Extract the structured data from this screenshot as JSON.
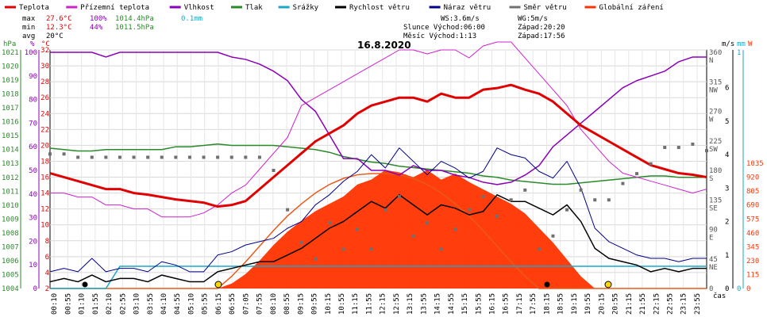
{
  "chart_data": {
    "type": "line",
    "title": "16.8.2020",
    "xlabel": "čas",
    "legend": [
      {
        "name": "Teplota",
        "color": "#e00000"
      },
      {
        "name": "Přízemní teplota",
        "color": "#cc22cc"
      },
      {
        "name": "Vlhkost",
        "color": "#8a00b8"
      },
      {
        "name": "Tlak",
        "color": "#2a8a2a"
      },
      {
        "name": "Srážky",
        "color": "#1aa8c8"
      },
      {
        "name": "Rychlost větru",
        "color": "#000000"
      },
      {
        "name": "Náraz větru",
        "color": "#000088"
      },
      {
        "name": "Směr větru",
        "color": "#707070"
      },
      {
        "name": "Globální záření",
        "color": "#ff3300"
      }
    ],
    "stats": {
      "max_label": "max",
      "max_temp": "27.6°C",
      "max_hum": "100%",
      "max_press": "1014.4hPa",
      "rain": "0.1mm",
      "min_label": "min",
      "min_temp": "12.3°C",
      "min_hum": "44%",
      "min_press": "1011.5hPa",
      "avg_label": "avg",
      "avg_temp": "20°C",
      "ws": "WS:3.6m/s",
      "wg": "WG:5m/s",
      "sun": "Slunce Východ:06:00",
      "sun_set": "Západ:20:20",
      "moon": "Měsíc Východ:1:13",
      "moon_set": "Západ:17:56"
    },
    "axes": {
      "hpa_label": "hPa",
      "pct_label": "%",
      "c_label": "°C",
      "ms_label": "m/s",
      "mm_label": "mm",
      "w_label": "W",
      "hpa_ticks": [
        "1021",
        "1020",
        "1019",
        "1018",
        "1017",
        "1016",
        "1015",
        "1014",
        "1013",
        "1012",
        "1011",
        "1010",
        "1009",
        "1008",
        "1007",
        "1006",
        "1005",
        "1004"
      ],
      "pct_ticks": [
        "100",
        "90",
        "80",
        "70",
        "60",
        "50",
        "40",
        "30",
        "20",
        "10",
        "0"
      ],
      "c_ticks": [
        "32",
        "30",
        "28",
        "26",
        "24",
        "22",
        "20",
        "18",
        "16",
        "14",
        "12",
        "10",
        "8",
        "6",
        "4",
        "2"
      ],
      "deg_ticks": [
        "360",
        "315",
        "270",
        "225",
        "180",
        "135",
        "90",
        "45",
        "0"
      ],
      "dir_ticks": [
        "N",
        "NW",
        "W",
        "SW",
        "S",
        "SE",
        "E",
        "NE",
        ""
      ],
      "ms_ticks": [
        "6",
        "5",
        "4",
        "3",
        "2",
        "1",
        "0"
      ],
      "mm_ticks": [
        "1",
        "0"
      ],
      "w_ticks": [
        "1035",
        "920",
        "805",
        "690",
        "575",
        "460",
        "345",
        "230",
        "115",
        "0"
      ]
    },
    "x_ticks": [
      "00:10",
      "00:55",
      "01:10",
      "01:55",
      "02:10",
      "02:55",
      "03:10",
      "03:55",
      "04:10",
      "04:55",
      "05:10",
      "05:55",
      "06:15",
      "06:55",
      "07:05",
      "07:55",
      "08:10",
      "08:55",
      "09:15",
      "09:55",
      "10:15",
      "10:55",
      "11:15",
      "11:55",
      "12:15",
      "12:55",
      "13:15",
      "13:55",
      "14:15",
      "14:55",
      "15:15",
      "15:55",
      "16:15",
      "16:55",
      "17:15",
      "17:55",
      "18:15",
      "18:55",
      "19:15",
      "19:55",
      "20:15",
      "20:55",
      "21:15",
      "21:55",
      "22:15",
      "22:55",
      "23:15",
      "23:55"
    ],
    "x_hours": [
      0,
      2,
      4,
      6,
      8,
      10,
      12,
      14,
      16,
      18,
      20,
      22,
      24
    ],
    "temperature": [
      16.5,
      16.0,
      15.5,
      15.0,
      14.5,
      14.5,
      14.0,
      13.8,
      13.5,
      13.2,
      13.0,
      12.8,
      12.3,
      12.5,
      13.0,
      14.5,
      16.0,
      17.5,
      19.0,
      20.5,
      21.5,
      22.5,
      24.0,
      25.0,
      25.5,
      26.0,
      26.0,
      25.5,
      26.5,
      26.0,
      26.0,
      27.0,
      27.2,
      27.6,
      27.0,
      26.5,
      25.5,
      24.0,
      22.5,
      21.5,
      20.5,
      19.5,
      18.5,
      17.5,
      17.0,
      16.5,
      16.3,
      16.0
    ],
    "ground_temperature": [
      14.0,
      14.0,
      13.5,
      13.5,
      12.5,
      12.5,
      12.0,
      12.0,
      11.0,
      11.0,
      11.0,
      11.5,
      12.5,
      14.0,
      15.0,
      17.0,
      19.0,
      21.0,
      25.0,
      26.0,
      27.0,
      28.0,
      29.0,
      30.0,
      31.0,
      32.0,
      32.0,
      31.5,
      32.0,
      32.0,
      31.0,
      32.5,
      33.0,
      33.0,
      31.0,
      29.0,
      27.0,
      25.0,
      22.0,
      20.0,
      18.0,
      16.5,
      16.0,
      15.5,
      15.0,
      14.5,
      14.0,
      14.5
    ],
    "humidity": [
      100,
      100,
      100,
      100,
      98,
      100,
      100,
      100,
      100,
      100,
      100,
      100,
      100,
      98,
      97,
      95,
      92,
      88,
      80,
      75,
      65,
      55,
      55,
      50,
      50,
      48,
      52,
      50,
      50,
      48,
      47,
      45,
      44,
      45,
      48,
      52,
      60,
      65,
      70,
      75,
      80,
      85,
      88,
      90,
      92,
      96,
      98,
      98
    ],
    "pressure": [
      1014.1,
      1014.0,
      1013.9,
      1013.9,
      1014.0,
      1014.0,
      1014.0,
      1014.0,
      1014.0,
      1014.2,
      1014.2,
      1014.3,
      1014.4,
      1014.3,
      1014.3,
      1014.3,
      1014.3,
      1014.2,
      1014.1,
      1014.0,
      1013.8,
      1013.5,
      1013.3,
      1013.1,
      1013.0,
      1012.8,
      1012.7,
      1012.6,
      1012.5,
      1012.4,
      1012.3,
      1012.1,
      1012.0,
      1011.8,
      1011.7,
      1011.6,
      1011.5,
      1011.5,
      1011.6,
      1011.7,
      1011.8,
      1011.9,
      1012.0,
      1012.1,
      1012.1,
      1012.0,
      1012.0,
      1012.0
    ],
    "wind_speed": [
      0.2,
      0.3,
      0.2,
      0.4,
      0.2,
      0.3,
      0.3,
      0.2,
      0.4,
      0.3,
      0.2,
      0.2,
      0.5,
      0.6,
      0.7,
      0.8,
      0.8,
      1.0,
      1.2,
      1.5,
      1.8,
      2.0,
      2.3,
      2.6,
      2.4,
      2.8,
      2.5,
      2.2,
      2.5,
      2.4,
      2.2,
      2.3,
      2.8,
      2.6,
      2.6,
      2.4,
      2.2,
      2.5,
      2.0,
      1.2,
      0.9,
      0.8,
      0.7,
      0.5,
      0.6,
      0.5,
      0.6,
      0.6
    ],
    "wind_gust": [
      0.5,
      0.6,
      0.5,
      0.9,
      0.5,
      0.6,
      0.6,
      0.5,
      0.8,
      0.7,
      0.5,
      0.5,
      1.0,
      1.1,
      1.3,
      1.4,
      1.5,
      1.8,
      2.0,
      2.5,
      2.8,
      3.2,
      3.5,
      4.0,
      3.6,
      4.2,
      3.8,
      3.4,
      3.8,
      3.6,
      3.3,
      3.5,
      4.2,
      4.0,
      3.9,
      3.5,
      3.3,
      3.8,
      3.0,
      1.8,
      1.4,
      1.2,
      1.0,
      0.9,
      0.9,
      0.8,
      0.9,
      0.9
    ],
    "wind_direction": [
      205,
      205,
      200,
      200,
      200,
      200,
      200,
      200,
      200,
      200,
      200,
      200,
      200,
      200,
      200,
      200,
      180,
      120,
      70,
      45,
      100,
      60,
      90,
      60,
      120,
      140,
      80,
      100,
      60,
      90,
      120,
      140,
      110,
      135,
      150,
      60,
      80,
      120,
      150,
      135,
      135,
      160,
      175,
      190,
      215,
      215,
      220,
      210
    ],
    "radiation": [
      0,
      0,
      0,
      0,
      0,
      0,
      0,
      0,
      0,
      0,
      0,
      0,
      0,
      40,
      120,
      230,
      360,
      470,
      560,
      640,
      700,
      760,
      860,
      900,
      980,
      960,
      920,
      980,
      900,
      950,
      880,
      820,
      760,
      700,
      620,
      500,
      380,
      240,
      100,
      0,
      0,
      0,
      0,
      0,
      0,
      0,
      0,
      0
    ],
    "radiation_theoretical": [
      0,
      0,
      0,
      0,
      0,
      0,
      0,
      0,
      0,
      0,
      0,
      0,
      0,
      100,
      220,
      350,
      480,
      600,
      700,
      790,
      860,
      910,
      940,
      950,
      950,
      940,
      910,
      860,
      790,
      700,
      600,
      480,
      350,
      220,
      100,
      0,
      0,
      0,
      0,
      0,
      0,
      0,
      0,
      0,
      0,
      0,
      0,
      0
    ],
    "rain": [
      0,
      0,
      0,
      0,
      0,
      0.1,
      0.1,
      0.1,
      0.1,
      0.1,
      0.1,
      0.1,
      0.1,
      0.1,
      0.1,
      0.1,
      0.1,
      0.1,
      0.1,
      0.1,
      0.1,
      0.1,
      0.1,
      0.1,
      0.1,
      0.1,
      0.1,
      0.1,
      0.1,
      0.1,
      0.1,
      0.1,
      0.1,
      0.1,
      0.1,
      0.1,
      0.1,
      0.1,
      0.1,
      0.1,
      0.1,
      0.1,
      0.1,
      0.1,
      0.1,
      0.1,
      0.1,
      0.1
    ]
  }
}
